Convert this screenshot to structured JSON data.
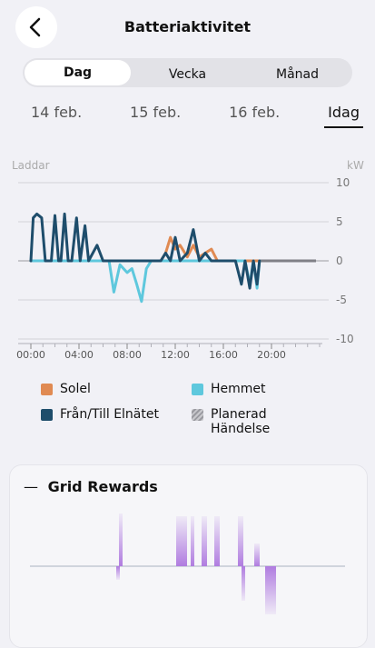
{
  "header": {
    "title": "Batteriaktivitet"
  },
  "tabs": [
    "Dag",
    "Vecka",
    "Månad"
  ],
  "selected_tab": 0,
  "dates": [
    "14 feb.",
    "15 feb.",
    "16 feb.",
    "Idag"
  ],
  "selected_date": 3,
  "chart_data": {
    "type": "line",
    "y_label": "Laddar",
    "unit_label": "kW",
    "x": [
      0,
      0.2,
      0.5,
      0.9,
      1.2,
      1.7,
      2.0,
      2.3,
      2.5,
      2.8,
      3.1,
      3.4,
      3.8,
      4.1,
      4.5,
      4.8,
      5.5,
      6.0,
      6.5,
      6.9,
      7.4,
      8.0,
      8.4,
      8.8,
      9.2,
      9.6,
      10.0,
      10.8,
      11.2,
      11.6,
      12.0,
      12.4,
      13.0,
      13.5,
      14.0,
      14.5,
      15.0,
      15.5,
      16.0,
      16.5,
      17.0,
      17.5,
      17.8,
      18.2,
      18.5,
      18.8,
      19.0
    ],
    "xlim": [
      0,
      24
    ],
    "xticks": [
      {
        "value": 0,
        "label": "00:00"
      },
      {
        "value": 4,
        "label": "04:00"
      },
      {
        "value": 8,
        "label": "08:00"
      },
      {
        "value": 12,
        "label": "12:00"
      },
      {
        "value": 16,
        "label": "16:00"
      },
      {
        "value": 20,
        "label": "20:00"
      }
    ],
    "ylim": [
      -10,
      10
    ],
    "yticks": [
      -10,
      -5,
      0,
      5,
      10
    ],
    "grid": true,
    "series": [
      {
        "name": "Solel",
        "color": "#e08a52",
        "values": [
          0,
          0,
          0,
          0,
          0,
          0,
          0,
          0,
          0,
          0,
          0,
          0,
          0,
          0,
          0,
          0,
          0,
          0,
          0,
          0,
          0,
          0,
          0,
          0,
          0,
          0,
          0,
          0,
          1,
          3,
          1.5,
          2,
          0.5,
          2,
          0.5,
          1,
          1.5,
          0,
          0,
          0,
          0,
          0,
          0,
          0,
          0,
          0,
          0
        ]
      },
      {
        "name": "Hemmet",
        "color": "#5ec8dd",
        "values": [
          0,
          0,
          0,
          0,
          0,
          0,
          0,
          0,
          0,
          0,
          0,
          0,
          0,
          0,
          0,
          0,
          0,
          0,
          0,
          -4,
          -0.5,
          -1.5,
          -1,
          -3,
          -5.2,
          -1,
          0,
          0,
          0,
          0,
          0,
          0,
          0,
          0,
          0,
          0,
          0,
          0,
          0,
          0,
          0,
          0,
          0,
          -3,
          0,
          -3.5,
          0
        ]
      },
      {
        "name": "Från/Till Elnätet",
        "color": "#1e4d6b",
        "values": [
          0,
          5.5,
          6,
          5.5,
          0,
          0,
          5.8,
          0,
          0,
          6,
          0,
          0,
          5.5,
          0,
          4.5,
          0,
          2,
          0,
          0,
          0,
          0,
          0,
          0,
          0,
          0,
          0,
          0,
          0,
          1,
          0,
          3,
          0,
          1,
          4,
          0,
          1,
          0,
          0,
          0,
          0,
          0,
          -3,
          0,
          -3.5,
          0,
          -3,
          0
        ]
      }
    ],
    "planned_label": "Planerad Händelse"
  },
  "rewards": {
    "title": "Grid Rewards"
  }
}
